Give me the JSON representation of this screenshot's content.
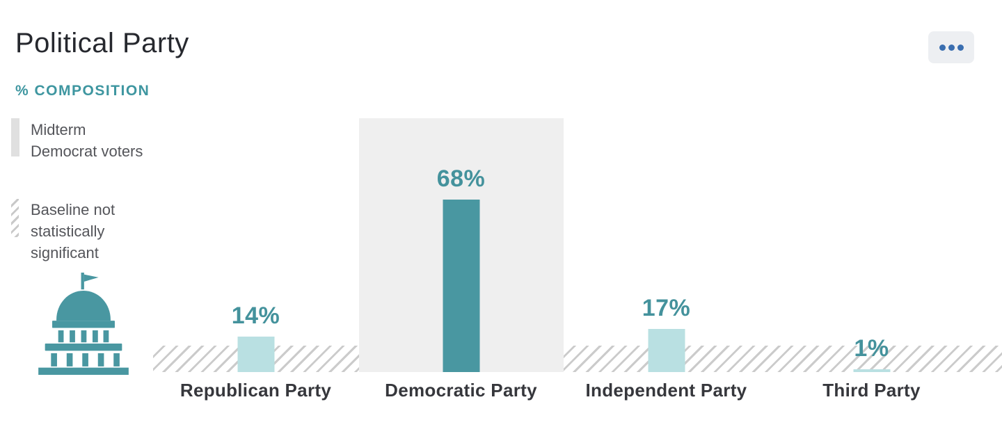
{
  "header": {
    "title": "Political Party",
    "subtitle": "% COMPOSITION",
    "menu_icon": "ellipsis-icon"
  },
  "legend": {
    "items": [
      {
        "marker": "solid-gray-bar",
        "label": "Midterm Democrat voters"
      },
      {
        "marker": "diagonal-hatch",
        "label": "Baseline not statistically significant"
      }
    ]
  },
  "icons": {
    "building": "capitol-building-icon"
  },
  "colors": {
    "accent_teal": "#4997a1",
    "light_teal": "#b9e0e2",
    "label_teal": "#44929c",
    "subtitle_teal": "#3e96a0",
    "highlight_gray": "#efefef",
    "hatch_gray": "#cbcbcb",
    "text_dark": "#36373c",
    "legend_text": "#54555a",
    "menu_dot_blue": "#3a6eb0",
    "menu_bg": "#edeff2"
  },
  "chart_data": {
    "type": "bar",
    "title": "Political Party",
    "ylabel": "% COMPOSITION",
    "categories": [
      "Republican Party",
      "Democratic Party",
      "Independent Party",
      "Third Party"
    ],
    "values": [
      14,
      68,
      17,
      1
    ],
    "labels": [
      "14%",
      "68%",
      "17%",
      "1%"
    ],
    "ylim": [
      0,
      100
    ],
    "grid": false,
    "highlighted_category": "Democratic Party",
    "highlight_meaning": "Midterm Democrat voters",
    "hatch_band_meaning": "Baseline not statistically significant",
    "bar_colors": [
      "#b9e0e2",
      "#4997a1",
      "#b9e0e2",
      "#b9e0e2"
    ]
  }
}
